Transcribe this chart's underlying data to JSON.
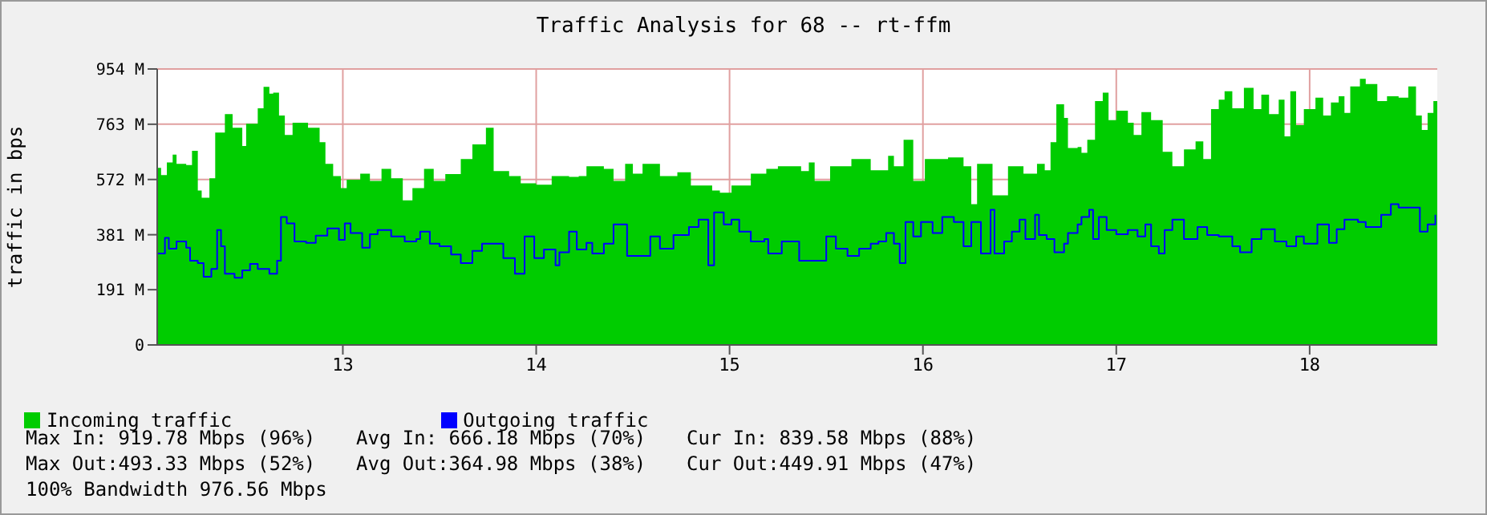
{
  "chart_data": {
    "type": "area",
    "title": "Traffic Analysis for 68 -- rt-ffm",
    "ylabel": "traffic in bps",
    "xlim": [
      12.04,
      18.66
    ],
    "xticks": [
      13,
      14,
      15,
      16,
      17,
      18
    ],
    "ylim": [
      0,
      954
    ],
    "yticks": [
      {
        "value": 0,
        "label": "0"
      },
      {
        "value": 191,
        "label": "191 M"
      },
      {
        "value": 381,
        "label": "381 M"
      },
      {
        "value": 572,
        "label": "572 M"
      },
      {
        "value": 763,
        "label": "763 M"
      },
      {
        "value": 954,
        "label": "954 M"
      }
    ],
    "grid": true,
    "legend": "bottom left",
    "series": [
      {
        "name": "Incoming traffic",
        "color": "#00cc00",
        "x": [
          12.04,
          12.06,
          12.09,
          12.12,
          12.14,
          12.19,
          12.22,
          12.25,
          12.27,
          12.31,
          12.34,
          12.39,
          12.43,
          12.48,
          12.5,
          12.56,
          12.59,
          12.62,
          12.64,
          12.67,
          12.7,
          12.74,
          12.78,
          12.82,
          12.88,
          12.91,
          12.95,
          12.99,
          13.02,
          13.09,
          13.14,
          13.2,
          13.25,
          13.31,
          13.36,
          13.42,
          13.47,
          13.53,
          13.61,
          13.67,
          13.74,
          13.78,
          13.86,
          13.92,
          14.0,
          14.08,
          14.17,
          14.22,
          14.26,
          14.35,
          14.4,
          14.46,
          14.5,
          14.55,
          14.64,
          14.73,
          14.8,
          14.91,
          14.95,
          15.01,
          15.11,
          15.19,
          15.25,
          15.37,
          15.41,
          15.44,
          15.52,
          15.63,
          15.73,
          15.82,
          15.85,
          15.9,
          15.95,
          16.01,
          16.13,
          16.21,
          16.25,
          16.28,
          16.36,
          16.44,
          16.52,
          16.59,
          16.63,
          16.66,
          16.69,
          16.73,
          16.75,
          16.8,
          16.82,
          16.85,
          16.89,
          16.93,
          16.96,
          17.0,
          17.06,
          17.09,
          17.13,
          17.18,
          17.24,
          17.29,
          17.35,
          17.41,
          17.45,
          17.49,
          17.53,
          17.56,
          17.6,
          17.66,
          17.71,
          17.75,
          17.79,
          17.84,
          17.87,
          17.9,
          17.93,
          17.97,
          18.03,
          18.07,
          18.11,
          18.15,
          18.18,
          18.21,
          18.26,
          18.29,
          18.35,
          18.4,
          18.46,
          18.51,
          18.55,
          18.58,
          18.61,
          18.64,
          18.66
        ],
        "values": [
          612,
          587,
          631,
          658,
          626,
          622,
          671,
          534,
          509,
          576,
          734,
          798,
          751,
          688,
          765,
          818,
          892,
          869,
          872,
          793,
          726,
          768,
          768,
          751,
          701,
          626,
          584,
          542,
          571,
          592,
          567,
          609,
          576,
          500,
          542,
          609,
          567,
          591,
          643,
          693,
          751,
          601,
          584,
          559,
          554,
          584,
          581,
          584,
          618,
          609,
          567,
          626,
          592,
          626,
          584,
          597,
          551,
          534,
          526,
          551,
          592,
          609,
          618,
          601,
          631,
          567,
          618,
          643,
          604,
          654,
          618,
          709,
          567,
          643,
          648,
          618,
          487,
          626,
          517,
          618,
          592,
          626,
          604,
          701,
          832,
          785,
          681,
          684,
          664,
          709,
          843,
          872,
          777,
          810,
          768,
          726,
          805,
          777,
          668,
          618,
          676,
          704,
          643,
          815,
          848,
          877,
          818,
          889,
          815,
          865,
          798,
          848,
          721,
          877,
          760,
          815,
          855,
          793,
          838,
          860,
          802,
          894,
          920,
          902,
          843,
          860,
          855,
          894,
          793,
          743,
          802,
          843,
          843
        ]
      },
      {
        "name": "Outgoing traffic",
        "type": "step",
        "color": "#0000ff",
        "x": [
          12.04,
          12.08,
          12.1,
          12.14,
          12.19,
          12.21,
          12.25,
          12.28,
          12.32,
          12.35,
          12.37,
          12.39,
          12.44,
          12.48,
          12.52,
          12.56,
          12.62,
          12.66,
          12.68,
          12.71,
          12.75,
          12.81,
          12.86,
          12.92,
          12.98,
          13.01,
          13.04,
          13.1,
          13.14,
          13.18,
          13.25,
          13.32,
          13.38,
          13.4,
          13.45,
          13.5,
          13.56,
          13.61,
          13.67,
          13.72,
          13.78,
          13.83,
          13.89,
          13.94,
          13.99,
          14.04,
          14.1,
          14.12,
          14.17,
          14.21,
          14.26,
          14.29,
          14.35,
          14.4,
          14.47,
          14.54,
          14.59,
          14.64,
          14.71,
          14.79,
          14.84,
          14.89,
          14.92,
          14.97,
          15.01,
          15.05,
          15.11,
          15.18,
          15.2,
          15.27,
          15.34,
          15.36,
          15.41,
          15.5,
          15.55,
          15.61,
          15.67,
          15.73,
          15.77,
          15.81,
          15.85,
          15.88,
          15.91,
          15.95,
          15.99,
          16.05,
          16.1,
          16.16,
          16.21,
          16.25,
          16.3,
          16.35,
          16.37,
          16.42,
          16.46,
          16.5,
          16.53,
          16.58,
          16.6,
          16.64,
          16.68,
          16.73,
          16.75,
          16.8,
          16.82,
          16.86,
          16.88,
          16.91,
          16.95,
          17.0,
          17.06,
          17.11,
          17.15,
          17.18,
          17.22,
          17.25,
          17.29,
          17.35,
          17.42,
          17.47,
          17.53,
          17.6,
          17.64,
          17.7,
          17.75,
          17.82,
          17.88,
          17.93,
          17.97,
          18.04,
          18.1,
          18.14,
          18.18,
          18.25,
          18.29,
          18.37,
          18.42,
          18.46,
          18.51,
          18.57,
          18.61,
          18.65
        ],
        "values": [
          316,
          370,
          333,
          358,
          336,
          291,
          283,
          236,
          263,
          397,
          341,
          246,
          232,
          258,
          280,
          263,
          246,
          291,
          442,
          420,
          358,
          353,
          378,
          403,
          363,
          420,
          387,
          336,
          383,
          397,
          375,
          358,
          366,
          392,
          350,
          341,
          313,
          283,
          325,
          350,
          350,
          300,
          246,
          375,
          300,
          330,
          275,
          320,
          392,
          330,
          353,
          316,
          350,
          417,
          308,
          308,
          375,
          333,
          380,
          408,
          433,
          275,
          458,
          417,
          433,
          392,
          358,
          366,
          316,
          358,
          358,
          291,
          291,
          375,
          333,
          308,
          333,
          350,
          358,
          387,
          350,
          283,
          425,
          375,
          425,
          387,
          442,
          425,
          341,
          425,
          316,
          467,
          316,
          358,
          392,
          433,
          366,
          450,
          380,
          366,
          320,
          350,
          387,
          417,
          442,
          467,
          366,
          442,
          397,
          383,
          397,
          375,
          417,
          341,
          316,
          397,
          433,
          366,
          408,
          380,
          375,
          341,
          320,
          366,
          400,
          358,
          341,
          375,
          350,
          417,
          353,
          400,
          433,
          425,
          408,
          450,
          487,
          475,
          475,
          392,
          417,
          450
        ]
      }
    ],
    "annotations": [
      "Max In: 919.78 Mbps (96%)",
      "Avg In: 666.18 Mbps (70%)",
      "Cur In: 839.58 Mbps (88%)",
      "Max Out:493.33 Mbps (52%)",
      "Avg Out:364.98 Mbps (38%)",
      "Cur Out:449.91 Mbps (47%)",
      "100% Bandwidth 976.56 Mbps"
    ]
  }
}
